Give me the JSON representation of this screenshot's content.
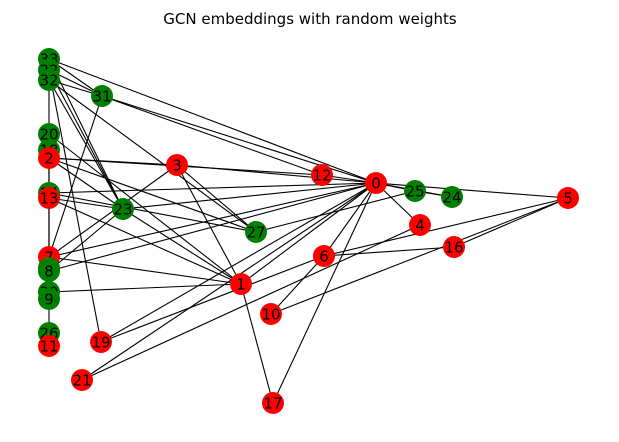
{
  "figure": {
    "title": "GCN embeddings with random weights"
  },
  "colors": {
    "red": "#ff0000",
    "green": "#008000",
    "edge": "#000000",
    "label": "#000000"
  },
  "graph": {
    "nodes": [
      {
        "id": "33",
        "color": "green"
      },
      {
        "id": "22",
        "color": "green"
      },
      {
        "id": "32",
        "color": "green"
      },
      {
        "id": "31",
        "color": "green"
      },
      {
        "id": "20",
        "color": "green"
      },
      {
        "id": "18",
        "color": "green"
      },
      {
        "id": "2",
        "color": "red"
      },
      {
        "id": "3",
        "color": "red"
      },
      {
        "id": "12",
        "color": "red"
      },
      {
        "id": "0",
        "color": "red"
      },
      {
        "id": "25",
        "color": "green"
      },
      {
        "id": "24",
        "color": "green"
      },
      {
        "id": "5",
        "color": "red"
      },
      {
        "id": "14",
        "color": "green"
      },
      {
        "id": "13",
        "color": "red"
      },
      {
        "id": "23",
        "color": "green"
      },
      {
        "id": "4",
        "color": "red"
      },
      {
        "id": "27",
        "color": "green"
      },
      {
        "id": "16",
        "color": "red"
      },
      {
        "id": "6",
        "color": "red"
      },
      {
        "id": "7",
        "color": "red"
      },
      {
        "id": "28",
        "color": "green"
      },
      {
        "id": "8",
        "color": "green"
      },
      {
        "id": "1",
        "color": "red"
      },
      {
        "id": "30",
        "color": "green"
      },
      {
        "id": "9",
        "color": "green"
      },
      {
        "id": "10",
        "color": "red"
      },
      {
        "id": "26",
        "color": "green"
      },
      {
        "id": "11",
        "color": "red"
      },
      {
        "id": "19",
        "color": "red"
      },
      {
        "id": "21",
        "color": "red"
      },
      {
        "id": "17",
        "color": "red"
      }
    ],
    "edges": [
      [
        "33",
        "31"
      ],
      [
        "33",
        "23"
      ],
      [
        "33",
        "0"
      ],
      [
        "22",
        "31"
      ],
      [
        "22",
        "19"
      ],
      [
        "22",
        "23"
      ],
      [
        "32",
        "31"
      ],
      [
        "32",
        "23"
      ],
      [
        "32",
        "27"
      ],
      [
        "31",
        "0"
      ],
      [
        "31",
        "12"
      ],
      [
        "31",
        "7"
      ],
      [
        "2",
        "3"
      ],
      [
        "2",
        "12"
      ],
      [
        "2",
        "27"
      ],
      [
        "2",
        "23"
      ],
      [
        "3",
        "7"
      ],
      [
        "3",
        "0"
      ],
      [
        "3",
        "1"
      ],
      [
        "3",
        "27"
      ],
      [
        "12",
        "0"
      ],
      [
        "0",
        "25"
      ],
      [
        "0",
        "24"
      ],
      [
        "0",
        "4"
      ],
      [
        "0",
        "5"
      ],
      [
        "0",
        "14"
      ],
      [
        "0",
        "23"
      ],
      [
        "0",
        "7"
      ],
      [
        "0",
        "1"
      ],
      [
        "0",
        "19"
      ],
      [
        "0",
        "21"
      ],
      [
        "0",
        "17"
      ],
      [
        "0",
        "8"
      ],
      [
        "0",
        "6"
      ],
      [
        "25",
        "24"
      ],
      [
        "25",
        "27"
      ],
      [
        "5",
        "6"
      ],
      [
        "5",
        "16"
      ],
      [
        "5",
        "10"
      ],
      [
        "6",
        "16"
      ],
      [
        "6",
        "10"
      ],
      [
        "6",
        "19"
      ],
      [
        "4",
        "21"
      ],
      [
        "13",
        "23"
      ],
      [
        "13",
        "1"
      ],
      [
        "23",
        "1"
      ],
      [
        "23",
        "8"
      ],
      [
        "7",
        "1"
      ],
      [
        "1",
        "30"
      ],
      [
        "1",
        "17"
      ],
      [
        "1",
        "20"
      ],
      [
        "20",
        "30"
      ],
      [
        "18",
        "30"
      ],
      [
        "14",
        "27"
      ]
    ]
  }
}
